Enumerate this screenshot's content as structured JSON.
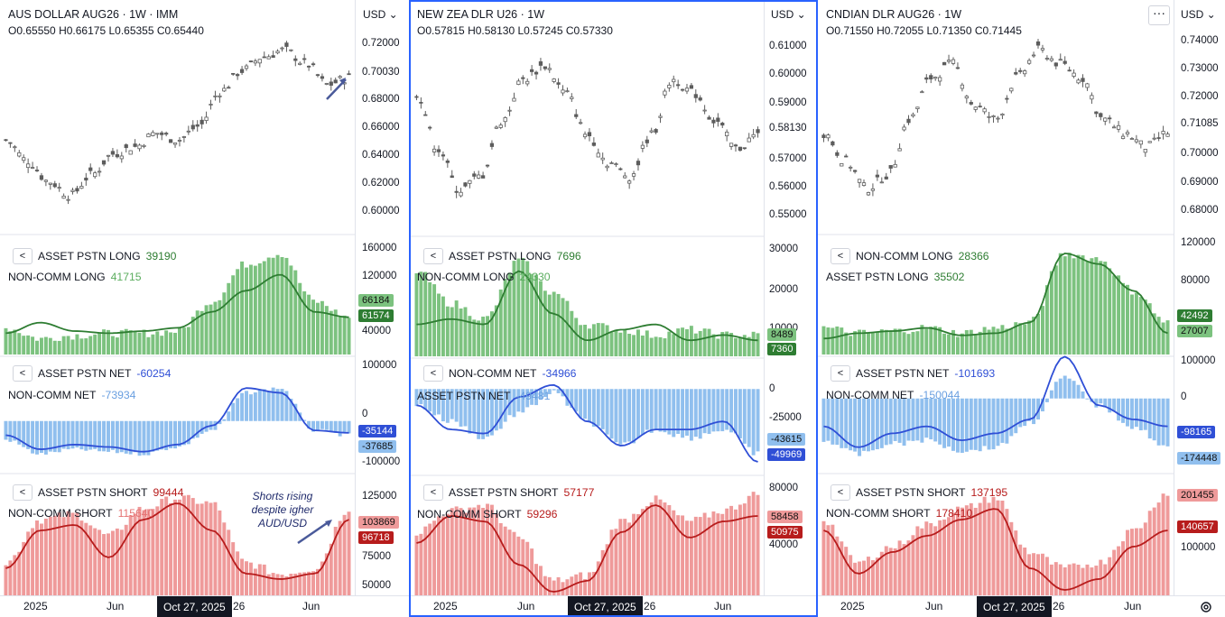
{
  "panels": [
    {
      "title": "AUS DOLLAR AUG26 · 1W · IMM",
      "ohlc": {
        "o": "0.65550",
        "h": "0.66175",
        "l": "0.65355",
        "c": "0.65440"
      },
      "currency": "USD",
      "price_ticks": [
        "0.72000",
        "0.70030",
        "0.68000",
        "0.66000",
        "0.64000",
        "0.62000",
        "0.60000"
      ],
      "long_pane": {
        "line1_name": "ASSET PSTN LONG",
        "line1_value": "39190",
        "line2_name": "NON-COMM LONG",
        "line2_value": "41715",
        "ticks": [
          "160000",
          "120000",
          "40000"
        ],
        "tag_top": "66184",
        "tag_bottom": "61574"
      },
      "net_pane": {
        "line1_name": "ASSET PSTN NET",
        "line1_value": "-60254",
        "line2_name": "NON-COMM NET",
        "line2_value": "-73934",
        "ticks": [
          "100000",
          "0",
          "-100000"
        ],
        "tag_top": "-35144",
        "tag_bottom": "-37685"
      },
      "short_pane": {
        "line1_name": "ASSET PSTN SHORT",
        "line1_value": "99444",
        "line2_name": "NON-COMM SHORT",
        "line2_value": "115640",
        "ticks": [
          "125000",
          "75000",
          "50000"
        ],
        "tag_top": "103869",
        "tag_bottom": "96718"
      },
      "time_labels": [
        "2025",
        "Jun",
        "26",
        "Jun"
      ],
      "crosshair_date": "Oct 27, 2025",
      "annotation": "Shorts rising despite igher AUD/USD"
    },
    {
      "title": "NEW ZEA DLR U26 · 1W",
      "ohlc": {
        "o": "0.57815",
        "h": "0.58130",
        "l": "0.57245",
        "c": "0.57330"
      },
      "currency": "USD",
      "price_ticks": [
        "0.61000",
        "0.60000",
        "0.59000",
        "0.58130",
        "0.57000",
        "0.56000",
        "0.55000"
      ],
      "long_pane": {
        "line1_name": "ASSET PSTN LONG",
        "line1_value": "7696",
        "line2_name": "NON-COMM LONG",
        "line2_value": "24330",
        "ticks": [
          "30000",
          "20000",
          "10000"
        ],
        "tag_top": "8489",
        "tag_bottom": "7360"
      },
      "net_pane": {
        "line1_name": "NON-COMM NET",
        "line1_value": "-34966",
        "line2_name": "ASSET PSTN NET",
        "line2_value": "-49481",
        "ticks": [
          "0",
          "-25000"
        ],
        "tag_top": "-43615",
        "tag_bottom": "-49969"
      },
      "short_pane": {
        "line1_name": "ASSET PSTN SHORT",
        "line1_value": "57177",
        "line2_name": "NON-COMM SHORT",
        "line2_value": "59296",
        "ticks": [
          "80000",
          "40000"
        ],
        "tag_top": "58458",
        "tag_bottom": "50975"
      },
      "time_labels": [
        "2025",
        "Jun",
        "26",
        "Jun"
      ],
      "crosshair_date": "Oct 27, 2025"
    },
    {
      "title": "CNDIAN DLR AUG26 · 1W",
      "ohlc": {
        "o": "0.71550",
        "h": "0.72055",
        "l": "0.71350",
        "c": "0.71445"
      },
      "currency": "USD",
      "price_ticks": [
        "0.74000",
        "0.73000",
        "0.72000",
        "0.71085",
        "0.70000",
        "0.69000",
        "0.68000"
      ],
      "long_pane": {
        "line1_name": "NON-COMM LONG",
        "line1_value": "28366",
        "line2_name": "ASSET PSTN LONG",
        "line2_value": "35502",
        "ticks": [
          "120000",
          "80000"
        ],
        "tag_top": "42492",
        "tag_bottom": "27007"
      },
      "net_pane": {
        "line1_name": "ASSET PSTN NET",
        "line1_value": "-101693",
        "line2_name": "NON-COMM NET",
        "line2_value": "-150044",
        "ticks": [
          "100000",
          "0"
        ],
        "tag_top": "-98165",
        "tag_bottom": "-174448"
      },
      "short_pane": {
        "line1_name": "ASSET PSTN SHORT",
        "line1_value": "137195",
        "line2_name": "NON-COMM SHORT",
        "line2_value": "178410",
        "ticks": [
          "100000"
        ],
        "tag_top": "201455",
        "tag_bottom": "140657"
      },
      "time_labels": [
        "2025",
        "Jun",
        "26",
        "Jun"
      ],
      "crosshair_date": "Oct 27, 2025"
    }
  ],
  "colors": {
    "green_bar": "#7cc27f",
    "green_line": "#2e7d32",
    "blue_bar": "#90bfee",
    "blue_line": "#2f4fd6",
    "red_bar": "#ef9a9a",
    "red_line": "#b71c1c",
    "candle": "#5d5d5d",
    "selected_border": "#2962ff"
  },
  "chart_data": [
    {
      "type": "line",
      "title": "AUS DOLLAR AUG26 · 1W · IMM",
      "series": [
        {
          "name": "AUS DOLLAR AUG26",
          "values": [
            0.655,
            0.64,
            0.625,
            0.615,
            0.63,
            0.645,
            0.65,
            0.66,
            0.655,
            0.665,
            0.69,
            0.705,
            0.715,
            0.72,
            0.71,
            0.695,
            0.7
          ]
        }
      ],
      "ylim": [
        0.59,
        0.73
      ]
    },
    {
      "type": "line",
      "title": "NEW ZEA DLR U26 · 1W",
      "series": [
        {
          "name": "NEW ZEA DLR U26",
          "values": [
            0.595,
            0.575,
            0.56,
            0.565,
            0.585,
            0.6,
            0.605,
            0.595,
            0.58,
            0.57,
            0.565,
            0.58,
            0.6,
            0.595,
            0.585,
            0.575,
            0.58
          ]
        }
      ],
      "ylim": [
        0.545,
        0.615
      ]
    },
    {
      "type": "line",
      "title": "CNDIAN DLR AUG26 · 1W",
      "series": [
        {
          "name": "CNDIAN DLR AUG26",
          "values": [
            0.71,
            0.7,
            0.69,
            0.695,
            0.715,
            0.73,
            0.735,
            0.72,
            0.715,
            0.73,
            0.74,
            0.735,
            0.73,
            0.715,
            0.71,
            0.705,
            0.71
          ]
        }
      ],
      "ylim": [
        0.675,
        0.745
      ]
    }
  ]
}
